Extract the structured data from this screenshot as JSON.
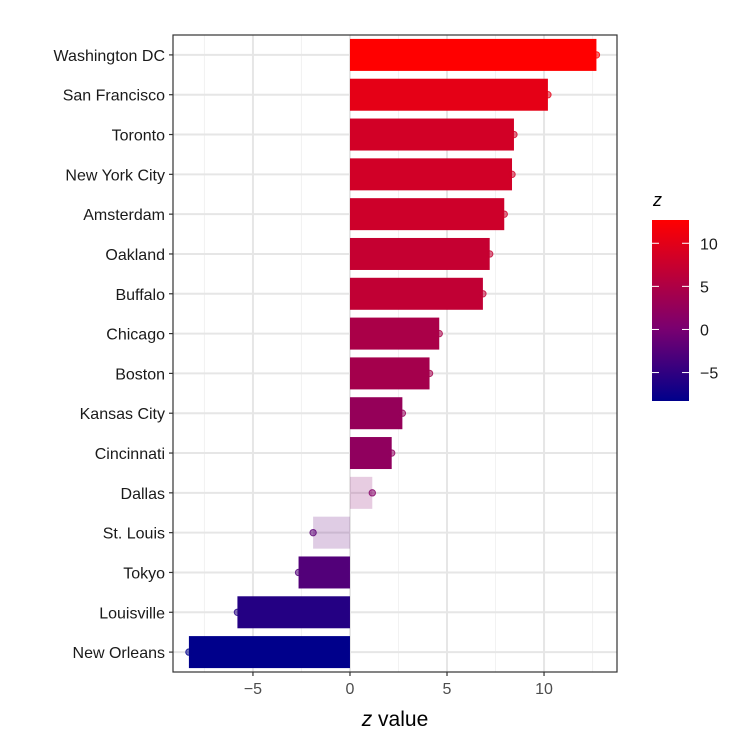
{
  "chart_data": {
    "type": "bar",
    "orientation": "horizontal",
    "title": "",
    "xlabel_italic": "z",
    "xlabel_rest": " value",
    "ylabel": "",
    "xlim": [
      -9.12,
      13.76
    ],
    "xticks": [
      -5,
      0,
      5,
      10
    ],
    "xtick_labels": [
      "−5",
      "0",
      "5",
      "10"
    ],
    "grid": true,
    "categories": [
      "Washington DC",
      "San Francisco",
      "Toronto",
      "New York City",
      "Amsterdam",
      "Oakland",
      "Buffalo",
      "Chicago",
      "Boston",
      "Kansas City",
      "Cincinnati",
      "Dallas",
      "St. Louis",
      "Tokyo",
      "Louisville",
      "New Orleans"
    ],
    "values": [
      12.7,
      10.2,
      8.45,
      8.35,
      7.95,
      7.2,
      6.85,
      4.6,
      4.1,
      2.7,
      2.15,
      1.15,
      -1.9,
      -2.65,
      -5.8,
      -8.3
    ],
    "faded": [
      false,
      false,
      false,
      false,
      false,
      false,
      false,
      false,
      false,
      false,
      false,
      true,
      true,
      false,
      false,
      false
    ],
    "legend": {
      "title": "z",
      "placement": "right",
      "range": [
        -8.3,
        12.7
      ],
      "ticks": [
        10,
        5,
        0,
        -5
      ],
      "tick_labels": [
        "10",
        "5",
        "0",
        "−5"
      ],
      "low_color": "#00008B",
      "mid_color": "#7A0070",
      "high_color": "#FF0000"
    }
  }
}
